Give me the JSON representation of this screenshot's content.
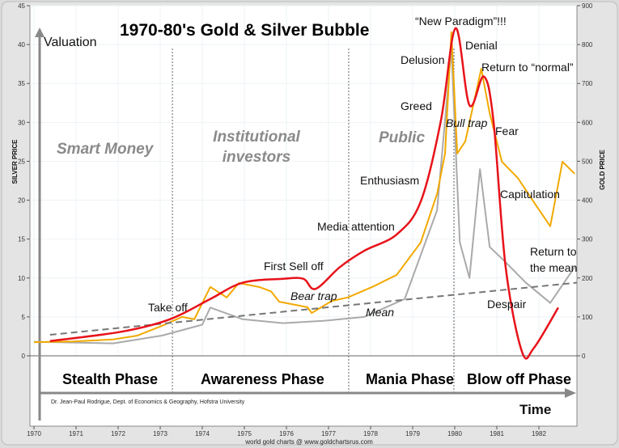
{
  "chart_data": {
    "type": "line",
    "title": "1970-80's Gold & Silver Bubble",
    "ylabel": "SILVER PRICE",
    "y2label": "GOLD PRICE",
    "valuation_label": "Valuation",
    "time_label": "Time",
    "xlim": [
      1970,
      1982.9
    ],
    "ylim": [
      0,
      45
    ],
    "y2lim": [
      0,
      900
    ],
    "x_ticks": [
      1970,
      1971,
      1972,
      1973,
      1974,
      1975,
      1976,
      1977,
      1978,
      1979,
      1980,
      1981,
      1982
    ],
    "y_ticks": [
      0,
      5,
      10,
      15,
      20,
      25,
      30,
      35,
      40,
      45
    ],
    "y2_ticks": [
      0,
      100,
      200,
      300,
      400,
      500,
      600,
      700,
      800,
      900
    ],
    "grid": true,
    "series": [
      {
        "axis": "gold",
        "color": "#f2a900",
        "points": [
          [
            1970.0,
            35
          ],
          [
            1970.92,
            37
          ],
          [
            1971.88,
            42
          ],
          [
            1972.46,
            52
          ],
          [
            1973.04,
            77
          ],
          [
            1973.52,
            100
          ],
          [
            1973.81,
            94
          ],
          [
            1974.19,
            177
          ],
          [
            1974.58,
            150
          ],
          [
            1974.87,
            187
          ],
          [
            1975.35,
            177
          ],
          [
            1975.63,
            166
          ],
          [
            1975.83,
            139
          ],
          [
            1976.5,
            125
          ],
          [
            1976.6,
            110
          ],
          [
            1977.08,
            141
          ],
          [
            1977.46,
            150
          ],
          [
            1978.04,
            177
          ],
          [
            1978.62,
            208
          ],
          [
            1979.19,
            291
          ],
          [
            1979.58,
            416
          ],
          [
            1979.77,
            520
          ],
          [
            1979.92,
            832
          ],
          [
            1980.06,
            520
          ],
          [
            1980.25,
            551
          ],
          [
            1980.44,
            644
          ],
          [
            1980.63,
            738
          ],
          [
            1980.83,
            624
          ],
          [
            1981.12,
            499
          ],
          [
            1981.5,
            457
          ],
          [
            1981.88,
            395
          ],
          [
            1982.27,
            333
          ],
          [
            1982.56,
            499
          ],
          [
            1982.85,
            468
          ]
        ]
      },
      {
        "axis": "silver",
        "color": "#aaaaaa",
        "points": [
          [
            1970.0,
            1.8
          ],
          [
            1971.88,
            1.6
          ],
          [
            1973.04,
            2.6
          ],
          [
            1974.0,
            4.0
          ],
          [
            1974.19,
            6.2
          ],
          [
            1974.96,
            4.7
          ],
          [
            1975.92,
            4.2
          ],
          [
            1976.88,
            4.5
          ],
          [
            1977.85,
            5.0
          ],
          [
            1978.81,
            7.3
          ],
          [
            1979.58,
            18.7
          ],
          [
            1979.92,
            39.5
          ],
          [
            1980.12,
            14.6
          ],
          [
            1980.35,
            10
          ],
          [
            1980.6,
            24
          ],
          [
            1980.83,
            14
          ],
          [
            1981.12,
            12.5
          ],
          [
            1981.69,
            9.4
          ],
          [
            1982.27,
            6.8
          ],
          [
            1982.85,
            11.4
          ]
        ]
      },
      {
        "axis": "silver",
        "color": "#e8121a",
        "smooth": true,
        "points": [
          [
            1970.38,
            1.9
          ],
          [
            1972.08,
            3.1
          ],
          [
            1973.23,
            4.7
          ],
          [
            1974.19,
            7.3
          ],
          [
            1974.96,
            9.4
          ],
          [
            1975.92,
            9.9
          ],
          [
            1976.4,
            9.9
          ],
          [
            1976.69,
            8.6
          ],
          [
            1977.27,
            11.4
          ],
          [
            1977.85,
            13.5
          ],
          [
            1978.62,
            15.6
          ],
          [
            1979.19,
            19.8
          ],
          [
            1979.67,
            30.2
          ],
          [
            1980.02,
            42.1
          ],
          [
            1980.35,
            32.2
          ],
          [
            1980.69,
            35.9
          ],
          [
            1980.92,
            30.2
          ],
          [
            1981.21,
            11.4
          ],
          [
            1981.6,
            0.5
          ],
          [
            1981.88,
            1.0
          ],
          [
            1982.46,
            6.2
          ]
        ]
      },
      {
        "name": "Mean",
        "axis": "silver",
        "color": "#777777",
        "dashed": true,
        "points": [
          [
            1970.38,
            2.7
          ],
          [
            1982.9,
            9.4
          ]
        ]
      }
    ],
    "phase_dividers": [
      1973.29,
      1977.48,
      1979.98
    ],
    "groups": [
      "Smart Money",
      "Institutional",
      "investors",
      "Public"
    ],
    "phases": [
      "Stealth Phase",
      "Awareness Phase",
      "Mania Phase",
      "Blow off Phase"
    ],
    "annotations": {
      "take_off": "Take off",
      "first_sell_off": "First Sell off",
      "bear_trap": "Bear trap",
      "mean": "Mean",
      "media_attention": "Media attention",
      "enthusiasm": "Enthusiasm",
      "greed": "Greed",
      "delusion": "Delusion",
      "new_paradigm": "“New Paradigm”!!!",
      "denial": "Denial",
      "bull_trap": "Bull trap",
      "return_normal": "Return to “normal”",
      "fear": "Fear",
      "capitulation": "Capitulation",
      "return_mean_1": "Return to",
      "return_mean_2": "the mean",
      "despair": "Despair"
    },
    "credit": "Dr. Jean-Paul Rodrigue, Dept. of Economics & Geography, Hofstra University",
    "source": "world gold charts @ www.goldchartsrus.com"
  }
}
